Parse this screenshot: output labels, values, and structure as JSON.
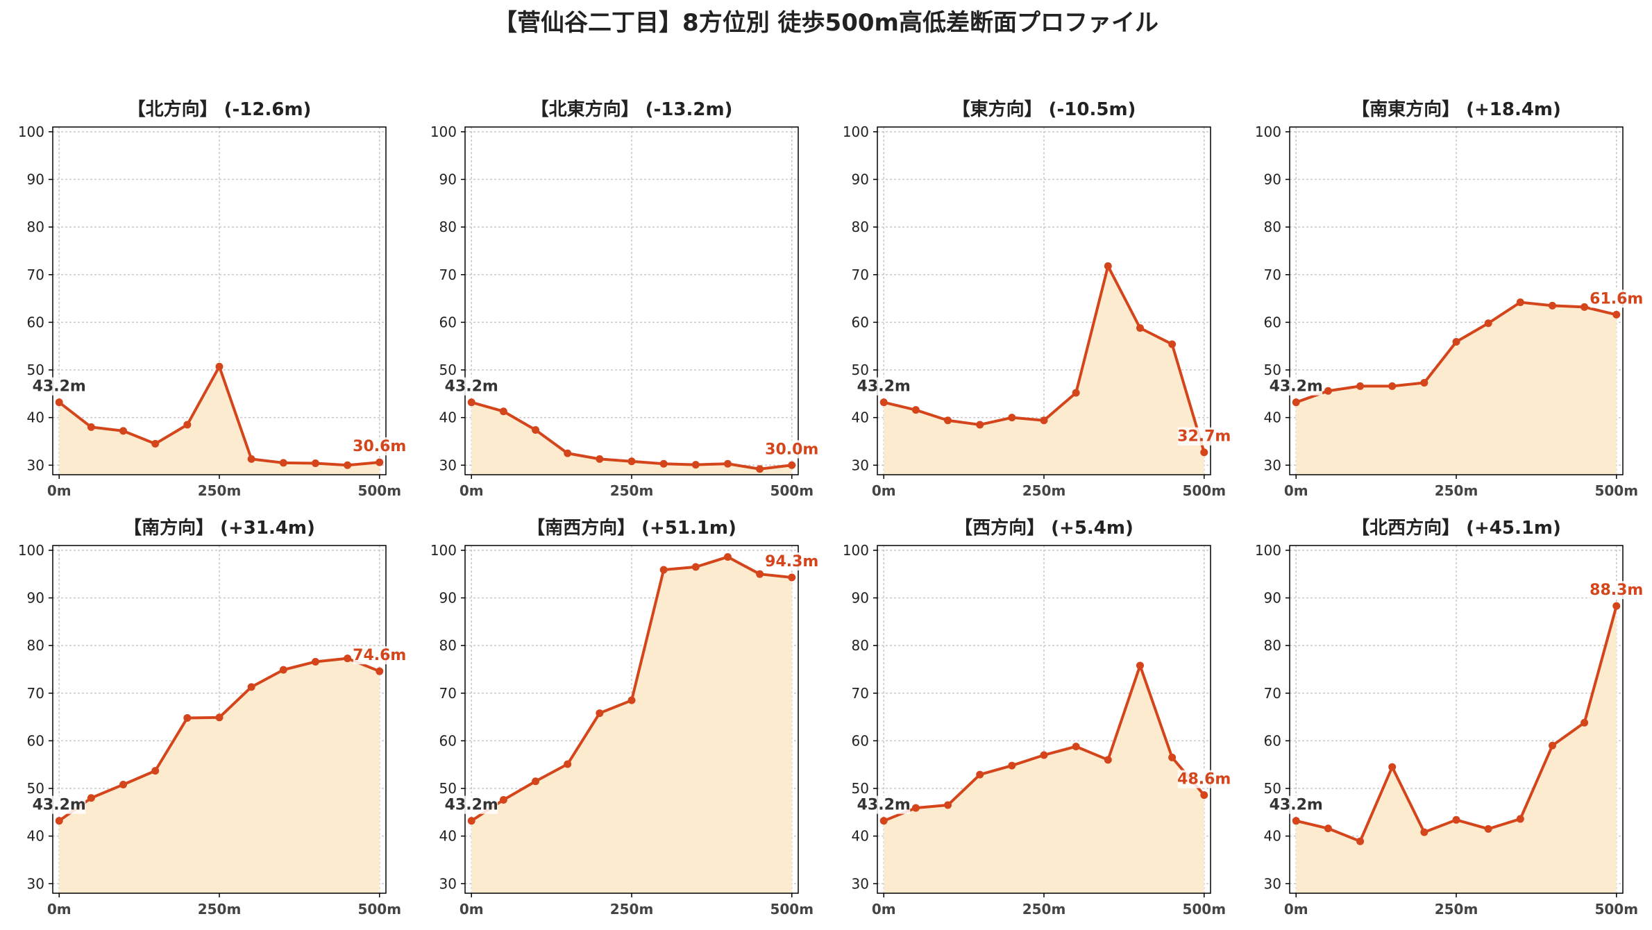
{
  "title": "【菅仙谷二丁目】8方位別 徒歩500m高低差断面プロファイル",
  "colors": {
    "line": "#d4451b",
    "fill": "#fdebd0",
    "grid": "#c8c8c8",
    "start_label": "#333333",
    "end_label": "#d4451b"
  },
  "chart_data": [
    {
      "type": "area",
      "title": "【北方向】 (-12.6m)",
      "x": [
        0,
        50,
        100,
        150,
        200,
        250,
        300,
        350,
        400,
        450,
        500
      ],
      "y": [
        43.2,
        38.0,
        37.2,
        34.5,
        38.5,
        50.7,
        31.3,
        30.5,
        30.4,
        30.0,
        30.6
      ],
      "xticks": [
        0,
        250,
        500
      ],
      "xtick_labels": [
        "0m",
        "250m",
        "500m"
      ],
      "yticks": [
        30,
        40,
        50,
        60,
        70,
        80,
        90,
        100
      ],
      "xlim": [
        -10,
        510
      ],
      "ylim": [
        28,
        101
      ],
      "start_label": "43.2m",
      "end_label": "30.6m",
      "grid": true
    },
    {
      "type": "area",
      "title": "【北東方向】 (-13.2m)",
      "x": [
        0,
        50,
        100,
        150,
        200,
        250,
        300,
        350,
        400,
        450,
        500
      ],
      "y": [
        43.2,
        41.3,
        37.4,
        32.5,
        31.3,
        30.8,
        30.3,
        30.1,
        30.3,
        29.2,
        30.0
      ],
      "xticks": [
        0,
        250,
        500
      ],
      "xtick_labels": [
        "0m",
        "250m",
        "500m"
      ],
      "yticks": [
        30,
        40,
        50,
        60,
        70,
        80,
        90,
        100
      ],
      "xlim": [
        -10,
        510
      ],
      "ylim": [
        28,
        101
      ],
      "start_label": "43.2m",
      "end_label": "30.0m",
      "grid": true
    },
    {
      "type": "area",
      "title": "【東方向】 (-10.5m)",
      "x": [
        0,
        50,
        100,
        150,
        200,
        250,
        300,
        350,
        400,
        450,
        500
      ],
      "y": [
        43.2,
        41.6,
        39.4,
        38.5,
        40.0,
        39.4,
        45.2,
        71.8,
        58.8,
        55.4,
        32.7
      ],
      "xticks": [
        0,
        250,
        500
      ],
      "xtick_labels": [
        "0m",
        "250m",
        "500m"
      ],
      "yticks": [
        30,
        40,
        50,
        60,
        70,
        80,
        90,
        100
      ],
      "xlim": [
        -10,
        510
      ],
      "ylim": [
        28,
        101
      ],
      "start_label": "43.2m",
      "end_label": "32.7m",
      "grid": true
    },
    {
      "type": "area",
      "title": "【南東方向】 (+18.4m)",
      "x": [
        0,
        50,
        100,
        150,
        200,
        250,
        300,
        350,
        400,
        450,
        500
      ],
      "y": [
        43.2,
        45.6,
        46.6,
        46.6,
        47.3,
        55.9,
        59.8,
        64.2,
        63.5,
        63.2,
        61.6
      ],
      "xticks": [
        0,
        250,
        500
      ],
      "xtick_labels": [
        "0m",
        "250m",
        "500m"
      ],
      "yticks": [
        30,
        40,
        50,
        60,
        70,
        80,
        90,
        100
      ],
      "xlim": [
        -10,
        510
      ],
      "ylim": [
        28,
        101
      ],
      "start_label": "43.2m",
      "end_label": "61.6m",
      "grid": true
    },
    {
      "type": "area",
      "title": "【南方向】 (+31.4m)",
      "x": [
        0,
        50,
        100,
        150,
        200,
        250,
        300,
        350,
        400,
        450,
        500
      ],
      "y": [
        43.2,
        48.0,
        50.8,
        53.7,
        64.8,
        64.9,
        71.3,
        74.9,
        76.6,
        77.3,
        74.6
      ],
      "xticks": [
        0,
        250,
        500
      ],
      "xtick_labels": [
        "0m",
        "250m",
        "500m"
      ],
      "yticks": [
        30,
        40,
        50,
        60,
        70,
        80,
        90,
        100
      ],
      "xlim": [
        -10,
        510
      ],
      "ylim": [
        28,
        101
      ],
      "start_label": "43.2m",
      "end_label": "74.6m",
      "grid": true
    },
    {
      "type": "area",
      "title": "【南西方向】 (+51.1m)",
      "x": [
        0,
        50,
        100,
        150,
        200,
        250,
        300,
        350,
        400,
        450,
        500
      ],
      "y": [
        43.2,
        47.6,
        51.5,
        55.1,
        65.8,
        68.5,
        95.9,
        96.5,
        98.6,
        95.0,
        94.3
      ],
      "xticks": [
        0,
        250,
        500
      ],
      "xtick_labels": [
        "0m",
        "250m",
        "500m"
      ],
      "yticks": [
        30,
        40,
        50,
        60,
        70,
        80,
        90,
        100
      ],
      "xlim": [
        -10,
        510
      ],
      "ylim": [
        28,
        101
      ],
      "start_label": "43.2m",
      "end_label": "94.3m",
      "grid": true
    },
    {
      "type": "area",
      "title": "【西方向】 (+5.4m)",
      "x": [
        0,
        50,
        100,
        150,
        200,
        250,
        300,
        350,
        400,
        450,
        500
      ],
      "y": [
        43.2,
        45.9,
        46.5,
        52.9,
        54.8,
        57.0,
        58.8,
        56.0,
        75.8,
        56.5,
        48.6
      ],
      "xticks": [
        0,
        250,
        500
      ],
      "xtick_labels": [
        "0m",
        "250m",
        "500m"
      ],
      "yticks": [
        30,
        40,
        50,
        60,
        70,
        80,
        90,
        100
      ],
      "xlim": [
        -10,
        510
      ],
      "ylim": [
        28,
        101
      ],
      "start_label": "43.2m",
      "end_label": "48.6m",
      "grid": true
    },
    {
      "type": "area",
      "title": "【北西方向】 (+45.1m)",
      "x": [
        0,
        50,
        100,
        150,
        200,
        250,
        300,
        350,
        400,
        450,
        500
      ],
      "y": [
        43.2,
        41.6,
        38.9,
        54.5,
        40.8,
        43.4,
        41.5,
        43.6,
        59.0,
        63.8,
        88.3
      ],
      "xticks": [
        0,
        250,
        500
      ],
      "xtick_labels": [
        "0m",
        "250m",
        "500m"
      ],
      "yticks": [
        30,
        40,
        50,
        60,
        70,
        80,
        90,
        100
      ],
      "xlim": [
        -10,
        510
      ],
      "ylim": [
        28,
        101
      ],
      "start_label": "43.2m",
      "end_label": "88.3m",
      "grid": true
    }
  ]
}
